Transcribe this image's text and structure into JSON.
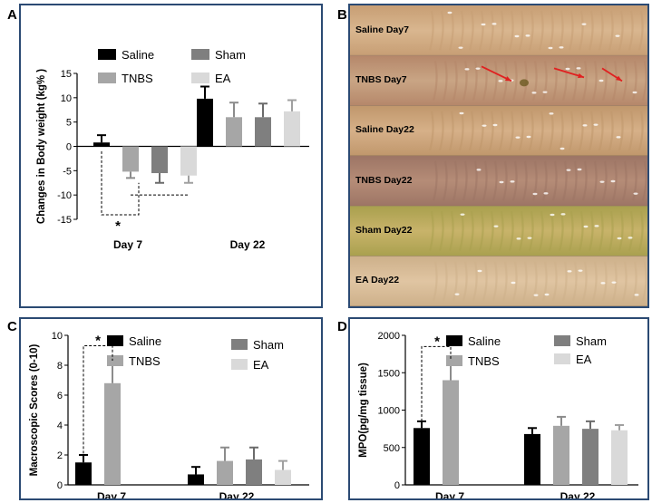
{
  "panels": {
    "A": {
      "letter": "A"
    },
    "B": {
      "letter": "B"
    },
    "C": {
      "letter": "C"
    },
    "D": {
      "letter": "D"
    }
  },
  "legend": {
    "saline": "Saline",
    "tnbs": "TNBS",
    "sham": "Sham",
    "ea": "EA"
  },
  "colors": {
    "saline": "#000000",
    "tnbs": "#a6a6a6",
    "sham": "#7f7f7f",
    "ea": "#d9d9d9",
    "frame": "#2b4a73"
  },
  "significance": "*",
  "chart_data": [
    {
      "id": "A",
      "type": "bar",
      "ylabel": "Changes in Body weight  (kg%  )",
      "ylim": [
        -15,
        15
      ],
      "yticks": [
        -15,
        -10,
        -5,
        0,
        5,
        10,
        15
      ],
      "categories": [
        "Day 7",
        "Day 22"
      ],
      "series": [
        {
          "name": "Saline",
          "values": [
            0.8,
            9.8
          ],
          "errors": [
            1.5,
            2.5
          ]
        },
        {
          "name": "TNBS",
          "values": [
            -5.2,
            6.0
          ],
          "errors": [
            1.3,
            3.0
          ]
        },
        {
          "name": "Sham",
          "values": [
            -5.5,
            6.0
          ],
          "errors": [
            2.0,
            2.8
          ]
        },
        {
          "name": "EA",
          "values": [
            -6.0,
            7.2
          ],
          "errors": [
            1.5,
            2.3
          ]
        }
      ]
    },
    {
      "id": "C",
      "type": "bar",
      "ylabel": "Macroscopic Scores (0-10)",
      "ylim": [
        0,
        10
      ],
      "yticks": [
        0,
        2,
        4,
        6,
        8,
        10
      ],
      "categories": [
        "Day 7",
        "Day 22"
      ],
      "series": [
        {
          "name": "Saline",
          "values": [
            1.5,
            0.7
          ],
          "errors": [
            0.5,
            0.5
          ]
        },
        {
          "name": "TNBS",
          "values": [
            6.8,
            1.6
          ],
          "errors": [
            1.5,
            0.9
          ]
        },
        {
          "name": "Sham",
          "values": [
            null,
            1.7
          ],
          "errors": [
            null,
            0.8
          ]
        },
        {
          "name": "EA",
          "values": [
            null,
            1.0
          ],
          "errors": [
            null,
            0.6
          ]
        }
      ]
    },
    {
      "id": "D",
      "type": "bar",
      "ylabel": "MPO(pg/mg tissue)",
      "ylim": [
        0,
        2000
      ],
      "yticks": [
        0,
        500,
        1000,
        1500,
        2000
      ],
      "categories": [
        "Day 7",
        "Day 22"
      ],
      "series": [
        {
          "name": "Saline",
          "values": [
            760,
            680
          ],
          "errors": [
            90,
            80
          ]
        },
        {
          "name": "TNBS",
          "values": [
            1400,
            790
          ],
          "errors": [
            270,
            120
          ]
        },
        {
          "name": "Sham",
          "values": [
            null,
            750
          ],
          "errors": [
            null,
            100
          ]
        },
        {
          "name": "EA",
          "values": [
            null,
            730
          ],
          "errors": [
            null,
            70
          ]
        }
      ]
    }
  ],
  "photo_strips": [
    {
      "label": "Saline Day7",
      "base": "#d9b68f",
      "tint": "#c79e74"
    },
    {
      "label": "TNBS  Day7",
      "base": "#c9a584",
      "tint": "#b5876a"
    },
    {
      "label": "Saline Day22",
      "base": "#d6b088",
      "tint": "#c0976c"
    },
    {
      "label": "TNBS  Day22",
      "base": "#b58c77",
      "tint": "#9d7565"
    },
    {
      "label": "Sham Day22",
      "base": "#c8b36a",
      "tint": "#a9a04e"
    },
    {
      "label": "EA   Day22",
      "base": "#e0c5a2",
      "tint": "#cdb08a"
    }
  ]
}
